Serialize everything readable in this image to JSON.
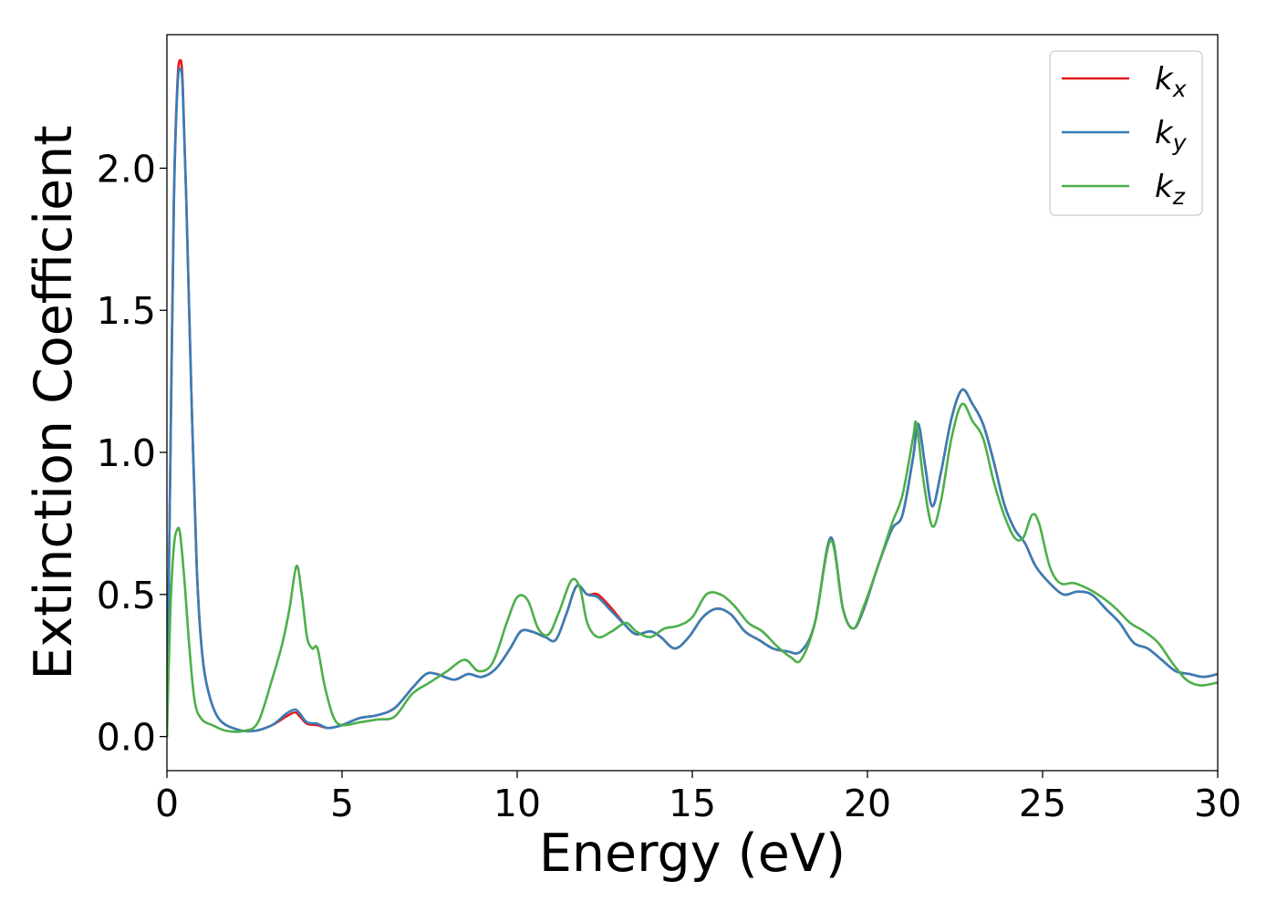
{
  "chart_data": {
    "type": "line",
    "title": "",
    "xlabel": "Energy (eV)",
    "ylabel": "Extinction Coefficient",
    "xlim": [
      0,
      30
    ],
    "ylim": [
      -0.12,
      2.47
    ],
    "xticks": [
      0,
      5,
      10,
      15,
      20,
      25,
      30
    ],
    "xtick_labels": [
      "0",
      "5",
      "10",
      "15",
      "20",
      "25",
      "30"
    ],
    "yticks": [
      0.0,
      0.5,
      1.0,
      1.5,
      2.0
    ],
    "ytick_labels": [
      "0.0",
      "0.5",
      "1.0",
      "1.5",
      "2.0"
    ],
    "grid": false,
    "legend_position": "top-right",
    "series": [
      {
        "name": "k_x",
        "label_main": "k",
        "label_sub": "x",
        "color": "#e41a1c",
        "points": [
          [
            0,
            0
          ],
          [
            0.1,
            1.0
          ],
          [
            0.2,
            1.9
          ],
          [
            0.3,
            2.3
          ],
          [
            0.38,
            2.38
          ],
          [
            0.45,
            2.3
          ],
          [
            0.55,
            1.9
          ],
          [
            0.7,
            1.2
          ],
          [
            0.85,
            0.6
          ],
          [
            1.0,
            0.3
          ],
          [
            1.2,
            0.15
          ],
          [
            1.5,
            0.06
          ],
          [
            2.0,
            0.025
          ],
          [
            2.5,
            0.02
          ],
          [
            3.0,
            0.04
          ],
          [
            3.4,
            0.07
          ],
          [
            3.65,
            0.085
          ],
          [
            3.8,
            0.07
          ],
          [
            4.0,
            0.045
          ],
          [
            4.3,
            0.04
          ],
          [
            4.6,
            0.03
          ],
          [
            5.0,
            0.04
          ],
          [
            5.5,
            0.065
          ],
          [
            6.0,
            0.075
          ],
          [
            6.5,
            0.1
          ],
          [
            7.0,
            0.17
          ],
          [
            7.4,
            0.22
          ],
          [
            7.7,
            0.22
          ],
          [
            8.2,
            0.2
          ],
          [
            8.6,
            0.22
          ],
          [
            9.0,
            0.21
          ],
          [
            9.4,
            0.24
          ],
          [
            9.8,
            0.31
          ],
          [
            10.1,
            0.37
          ],
          [
            10.4,
            0.37
          ],
          [
            10.8,
            0.35
          ],
          [
            11.1,
            0.34
          ],
          [
            11.4,
            0.43
          ],
          [
            11.7,
            0.53
          ],
          [
            12.0,
            0.5
          ],
          [
            12.3,
            0.5
          ],
          [
            12.7,
            0.45
          ],
          [
            13.1,
            0.39
          ],
          [
            13.4,
            0.36
          ],
          [
            13.8,
            0.37
          ],
          [
            14.1,
            0.35
          ],
          [
            14.5,
            0.31
          ],
          [
            14.9,
            0.35
          ],
          [
            15.3,
            0.42
          ],
          [
            15.7,
            0.45
          ],
          [
            16.1,
            0.43
          ],
          [
            16.5,
            0.37
          ],
          [
            16.9,
            0.34
          ],
          [
            17.3,
            0.31
          ],
          [
            17.7,
            0.3
          ],
          [
            18.1,
            0.3
          ],
          [
            18.5,
            0.4
          ],
          [
            18.95,
            0.7
          ],
          [
            19.3,
            0.45
          ],
          [
            19.6,
            0.38
          ],
          [
            19.9,
            0.45
          ],
          [
            20.3,
            0.6
          ],
          [
            20.7,
            0.73
          ],
          [
            21.0,
            0.78
          ],
          [
            21.3,
            0.98
          ],
          [
            21.45,
            1.1
          ],
          [
            21.65,
            0.95
          ],
          [
            21.85,
            0.81
          ],
          [
            22.1,
            0.93
          ],
          [
            22.4,
            1.12
          ],
          [
            22.7,
            1.22
          ],
          [
            23.0,
            1.17
          ],
          [
            23.3,
            1.1
          ],
          [
            23.6,
            0.97
          ],
          [
            23.9,
            0.82
          ],
          [
            24.2,
            0.73
          ],
          [
            24.5,
            0.68
          ],
          [
            24.8,
            0.6
          ],
          [
            25.2,
            0.54
          ],
          [
            25.6,
            0.5
          ],
          [
            26.0,
            0.51
          ],
          [
            26.4,
            0.5
          ],
          [
            26.8,
            0.45
          ],
          [
            27.2,
            0.4
          ],
          [
            27.6,
            0.33
          ],
          [
            28.0,
            0.31
          ],
          [
            28.4,
            0.27
          ],
          [
            28.8,
            0.23
          ],
          [
            29.2,
            0.22
          ],
          [
            29.6,
            0.21
          ],
          [
            30.0,
            0.22
          ]
        ]
      },
      {
        "name": "k_y",
        "label_main": "k",
        "label_sub": "y",
        "color": "#377eb8",
        "points": [
          [
            0,
            0
          ],
          [
            0.1,
            0.98
          ],
          [
            0.2,
            1.88
          ],
          [
            0.3,
            2.28
          ],
          [
            0.38,
            2.35
          ],
          [
            0.45,
            2.28
          ],
          [
            0.55,
            1.9
          ],
          [
            0.7,
            1.2
          ],
          [
            0.85,
            0.6
          ],
          [
            1.0,
            0.3
          ],
          [
            1.2,
            0.15
          ],
          [
            1.5,
            0.06
          ],
          [
            2.0,
            0.025
          ],
          [
            2.5,
            0.02
          ],
          [
            3.0,
            0.04
          ],
          [
            3.4,
            0.08
          ],
          [
            3.65,
            0.095
          ],
          [
            3.8,
            0.08
          ],
          [
            4.0,
            0.05
          ],
          [
            4.3,
            0.045
          ],
          [
            4.6,
            0.03
          ],
          [
            5.0,
            0.04
          ],
          [
            5.5,
            0.065
          ],
          [
            6.0,
            0.075
          ],
          [
            6.5,
            0.1
          ],
          [
            7.0,
            0.17
          ],
          [
            7.4,
            0.22
          ],
          [
            7.7,
            0.22
          ],
          [
            8.2,
            0.2
          ],
          [
            8.6,
            0.22
          ],
          [
            9.0,
            0.21
          ],
          [
            9.4,
            0.24
          ],
          [
            9.8,
            0.31
          ],
          [
            10.1,
            0.37
          ],
          [
            10.4,
            0.37
          ],
          [
            10.8,
            0.35
          ],
          [
            11.1,
            0.34
          ],
          [
            11.4,
            0.43
          ],
          [
            11.7,
            0.53
          ],
          [
            12.0,
            0.5
          ],
          [
            12.3,
            0.49
          ],
          [
            12.7,
            0.44
          ],
          [
            13.1,
            0.39
          ],
          [
            13.4,
            0.36
          ],
          [
            13.8,
            0.37
          ],
          [
            14.1,
            0.35
          ],
          [
            14.5,
            0.31
          ],
          [
            14.9,
            0.35
          ],
          [
            15.3,
            0.42
          ],
          [
            15.7,
            0.45
          ],
          [
            16.1,
            0.43
          ],
          [
            16.5,
            0.37
          ],
          [
            16.9,
            0.34
          ],
          [
            17.3,
            0.31
          ],
          [
            17.7,
            0.3
          ],
          [
            18.1,
            0.3
          ],
          [
            18.5,
            0.4
          ],
          [
            18.95,
            0.7
          ],
          [
            19.3,
            0.45
          ],
          [
            19.6,
            0.38
          ],
          [
            19.9,
            0.45
          ],
          [
            20.3,
            0.6
          ],
          [
            20.7,
            0.73
          ],
          [
            21.0,
            0.78
          ],
          [
            21.3,
            0.98
          ],
          [
            21.45,
            1.1
          ],
          [
            21.65,
            0.95
          ],
          [
            21.85,
            0.81
          ],
          [
            22.1,
            0.93
          ],
          [
            22.4,
            1.12
          ],
          [
            22.7,
            1.22
          ],
          [
            23.0,
            1.17
          ],
          [
            23.3,
            1.1
          ],
          [
            23.6,
            0.97
          ],
          [
            23.9,
            0.82
          ],
          [
            24.2,
            0.73
          ],
          [
            24.5,
            0.68
          ],
          [
            24.8,
            0.6
          ],
          [
            25.2,
            0.54
          ],
          [
            25.6,
            0.5
          ],
          [
            26.0,
            0.51
          ],
          [
            26.4,
            0.5
          ],
          [
            26.8,
            0.45
          ],
          [
            27.2,
            0.4
          ],
          [
            27.6,
            0.33
          ],
          [
            28.0,
            0.31
          ],
          [
            28.4,
            0.27
          ],
          [
            28.8,
            0.23
          ],
          [
            29.2,
            0.22
          ],
          [
            29.6,
            0.21
          ],
          [
            30.0,
            0.22
          ]
        ]
      },
      {
        "name": "k_z",
        "label_main": "k",
        "label_sub": "z",
        "color": "#4daf4a",
        "points": [
          [
            0,
            0
          ],
          [
            0.1,
            0.45
          ],
          [
            0.2,
            0.67
          ],
          [
            0.3,
            0.73
          ],
          [
            0.38,
            0.71
          ],
          [
            0.5,
            0.55
          ],
          [
            0.65,
            0.3
          ],
          [
            0.8,
            0.12
          ],
          [
            1.0,
            0.06
          ],
          [
            1.3,
            0.04
          ],
          [
            1.7,
            0.02
          ],
          [
            2.2,
            0.02
          ],
          [
            2.6,
            0.05
          ],
          [
            3.0,
            0.2
          ],
          [
            3.3,
            0.33
          ],
          [
            3.5,
            0.45
          ],
          [
            3.7,
            0.6
          ],
          [
            3.85,
            0.5
          ],
          [
            4.0,
            0.35
          ],
          [
            4.15,
            0.31
          ],
          [
            4.3,
            0.31
          ],
          [
            4.5,
            0.18
          ],
          [
            4.75,
            0.07
          ],
          [
            5.0,
            0.04
          ],
          [
            5.5,
            0.05
          ],
          [
            6.0,
            0.06
          ],
          [
            6.5,
            0.07
          ],
          [
            7.0,
            0.15
          ],
          [
            7.5,
            0.19
          ],
          [
            8.0,
            0.23
          ],
          [
            8.5,
            0.27
          ],
          [
            8.9,
            0.23
          ],
          [
            9.3,
            0.26
          ],
          [
            9.7,
            0.4
          ],
          [
            10.0,
            0.49
          ],
          [
            10.3,
            0.48
          ],
          [
            10.6,
            0.38
          ],
          [
            10.9,
            0.36
          ],
          [
            11.2,
            0.44
          ],
          [
            11.55,
            0.55
          ],
          [
            11.8,
            0.52
          ],
          [
            12.0,
            0.4
          ],
          [
            12.3,
            0.35
          ],
          [
            12.7,
            0.37
          ],
          [
            13.1,
            0.4
          ],
          [
            13.4,
            0.37
          ],
          [
            13.8,
            0.35
          ],
          [
            14.2,
            0.38
          ],
          [
            14.6,
            0.39
          ],
          [
            15.0,
            0.42
          ],
          [
            15.4,
            0.5
          ],
          [
            15.8,
            0.5
          ],
          [
            16.2,
            0.46
          ],
          [
            16.6,
            0.4
          ],
          [
            17.0,
            0.37
          ],
          [
            17.4,
            0.32
          ],
          [
            17.8,
            0.28
          ],
          [
            18.1,
            0.27
          ],
          [
            18.5,
            0.4
          ],
          [
            18.95,
            0.69
          ],
          [
            19.3,
            0.45
          ],
          [
            19.6,
            0.38
          ],
          [
            19.9,
            0.46
          ],
          [
            20.3,
            0.6
          ],
          [
            20.7,
            0.75
          ],
          [
            21.0,
            0.85
          ],
          [
            21.3,
            1.05
          ],
          [
            21.4,
            1.1
          ],
          [
            21.6,
            0.9
          ],
          [
            21.85,
            0.74
          ],
          [
            22.1,
            0.83
          ],
          [
            22.4,
            1.05
          ],
          [
            22.7,
            1.17
          ],
          [
            23.0,
            1.11
          ],
          [
            23.3,
            1.05
          ],
          [
            23.6,
            0.9
          ],
          [
            23.9,
            0.78
          ],
          [
            24.2,
            0.7
          ],
          [
            24.45,
            0.7
          ],
          [
            24.7,
            0.78
          ],
          [
            24.9,
            0.75
          ],
          [
            25.2,
            0.6
          ],
          [
            25.5,
            0.54
          ],
          [
            25.9,
            0.54
          ],
          [
            26.3,
            0.52
          ],
          [
            26.7,
            0.49
          ],
          [
            27.1,
            0.45
          ],
          [
            27.5,
            0.4
          ],
          [
            27.9,
            0.37
          ],
          [
            28.3,
            0.33
          ],
          [
            28.7,
            0.26
          ],
          [
            29.1,
            0.2
          ],
          [
            29.5,
            0.18
          ],
          [
            30.0,
            0.19
          ]
        ]
      }
    ]
  }
}
